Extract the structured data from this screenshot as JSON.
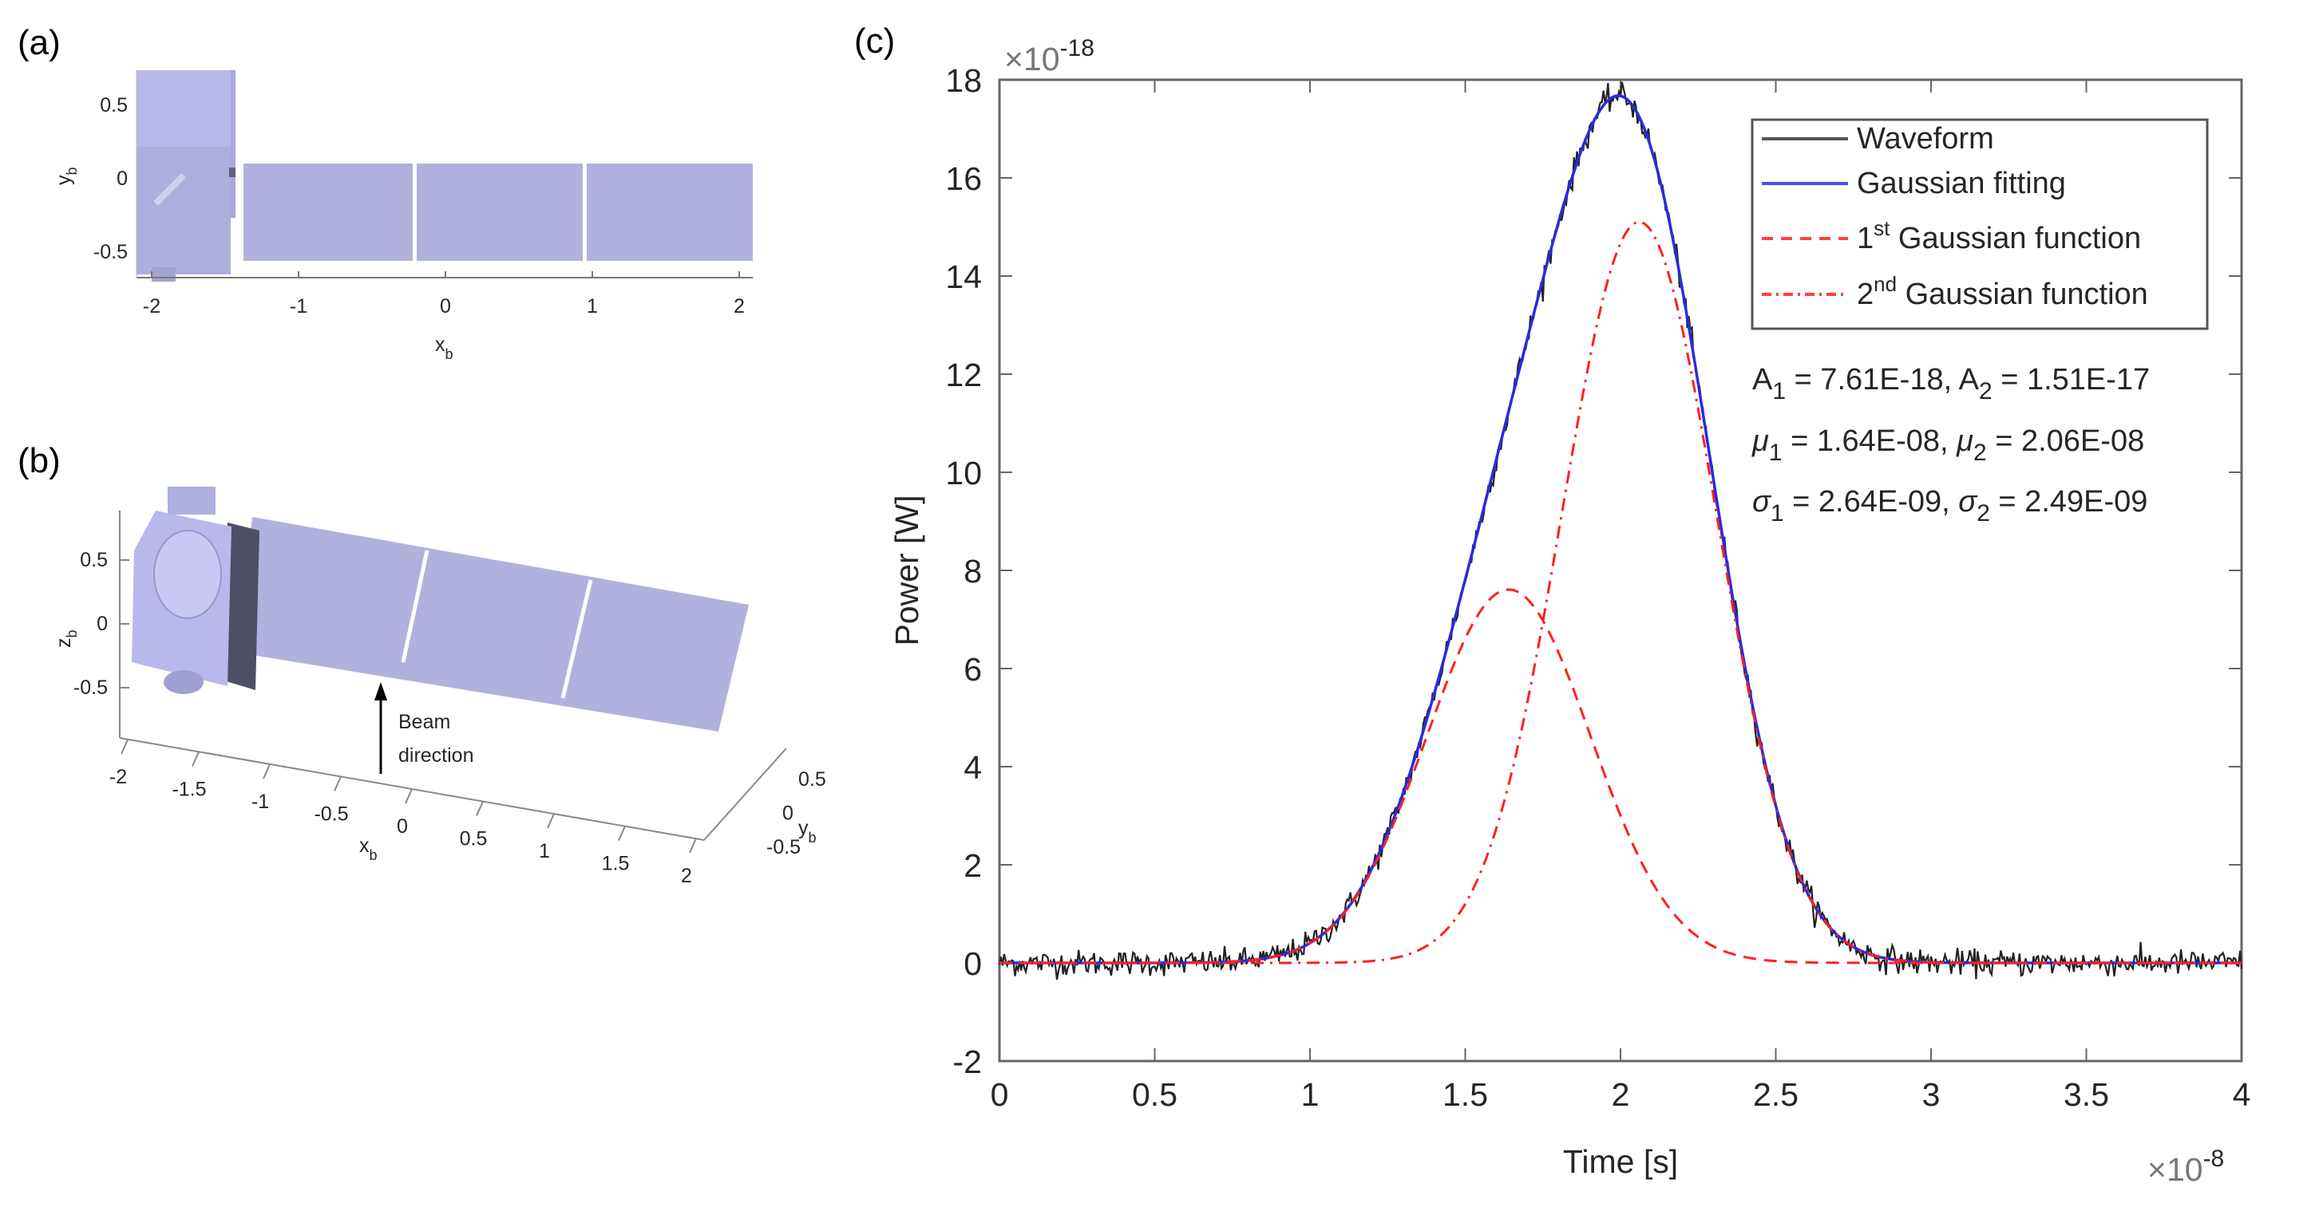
{
  "panels": {
    "a": {
      "label": "(a)",
      "xlabel": "x",
      "xlabel_sub": "b",
      "ylabel": "y",
      "ylabel_sub": "b",
      "xticks": [
        "-2",
        "-1",
        "0",
        "1",
        "2"
      ],
      "yticks": [
        "0.5",
        "0",
        "-0.5"
      ]
    },
    "b": {
      "label": "(b)",
      "xlabel": "x",
      "xlabel_sub": "b",
      "ylabel": "y",
      "ylabel_sub": "b",
      "zlabel": "z",
      "zlabel_sub": "b",
      "xticks": [
        "-2",
        "-1.5",
        "-1",
        "-0.5",
        "0",
        "0.5",
        "1",
        "1.5",
        "2"
      ],
      "yticks": [
        "0.5",
        "0",
        "-0.5"
      ],
      "zticks": [
        "0.5",
        "0",
        "-0.5"
      ],
      "annotation_line1": "Beam",
      "annotation_line2": "direction"
    },
    "c": {
      "label": "(c)"
    }
  },
  "colors": {
    "body": "#b3b3e0",
    "body_dark": "#50506a",
    "waveform": "#222222",
    "fit": "#2a2ae0",
    "gauss": "#ff2020"
  },
  "chart_data": {
    "type": "line",
    "title": "",
    "xlabel": "Time [s]",
    "ylabel": "Power [W]",
    "x_multiplier": "×10",
    "x_exponent": "-8",
    "y_multiplier": "×10",
    "y_exponent": "-18",
    "xlim": [
      0,
      4
    ],
    "ylim": [
      -2,
      18
    ],
    "xticks": [
      "0",
      "0.5",
      "1",
      "1.5",
      "2",
      "2.5",
      "3",
      "3.5",
      "4"
    ],
    "yticks": [
      "-2",
      "0",
      "2",
      "4",
      "6",
      "8",
      "10",
      "12",
      "14",
      "16",
      "18"
    ],
    "grid": false,
    "legend_position": "top-right",
    "legend": [
      {
        "name": "Waveform",
        "sup": "",
        "rest": "",
        "style": "solid-black"
      },
      {
        "name": "Gaussian fitting",
        "sup": "",
        "rest": "",
        "style": "solid-blue"
      },
      {
        "name": "1",
        "sup": "st",
        "rest": " Gaussian function",
        "style": "dashed-red"
      },
      {
        "name": "2",
        "sup": "nd",
        "rest": " Gaussian function",
        "style": "dashdot-red"
      }
    ],
    "gaussians": [
      {
        "A": 7.61,
        "mu": 1.64,
        "sigma": 0.264
      },
      {
        "A": 15.1,
        "mu": 2.06,
        "sigma": 0.249
      }
    ],
    "waveform_noise_std": 0.13,
    "waveform_samples": 800,
    "annotations": [
      {
        "sym1": "A",
        "sub1": "1",
        "val1": " = 7.61E-18, ",
        "sym2": "A",
        "sub2": "2",
        "val2": " = 1.51E-17"
      },
      {
        "sym1": "μ",
        "sub1": "1",
        "val1": " = 1.64E-08, ",
        "sym2": "μ",
        "sub2": "2",
        "val2": " = 2.06E-08"
      },
      {
        "sym1": "σ",
        "sub1": "1",
        "val1": " = 2.64E-09, ",
        "sym2": "σ",
        "sub2": "2",
        "val2": " = 2.49E-09"
      }
    ]
  }
}
